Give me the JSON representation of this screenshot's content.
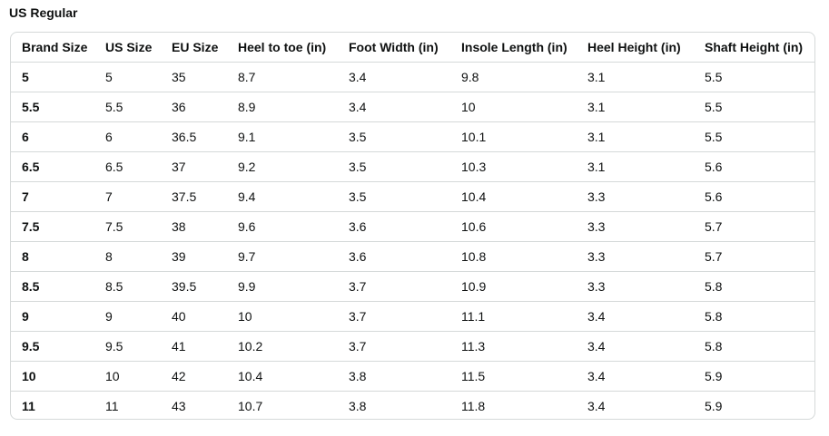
{
  "title": "US Regular",
  "columns": [
    "Brand Size",
    "US Size",
    "EU Size",
    "Heel to toe (in)",
    "Foot Width (in)",
    "Insole Length (in)",
    "Heel Height (in)",
    "Shaft Height (in)"
  ],
  "rows": [
    [
      "5",
      "5",
      "35",
      "8.7",
      "3.4",
      "9.8",
      "3.1",
      "5.5"
    ],
    [
      "5.5",
      "5.5",
      "36",
      "8.9",
      "3.4",
      "10",
      "3.1",
      "5.5"
    ],
    [
      "6",
      "6",
      "36.5",
      "9.1",
      "3.5",
      "10.1",
      "3.1",
      "5.5"
    ],
    [
      "6.5",
      "6.5",
      "37",
      "9.2",
      "3.5",
      "10.3",
      "3.1",
      "5.6"
    ],
    [
      "7",
      "7",
      "37.5",
      "9.4",
      "3.5",
      "10.4",
      "3.3",
      "5.6"
    ],
    [
      "7.5",
      "7.5",
      "38",
      "9.6",
      "3.6",
      "10.6",
      "3.3",
      "5.7"
    ],
    [
      "8",
      "8",
      "39",
      "9.7",
      "3.6",
      "10.8",
      "3.3",
      "5.7"
    ],
    [
      "8.5",
      "8.5",
      "39.5",
      "9.9",
      "3.7",
      "10.9",
      "3.3",
      "5.8"
    ],
    [
      "9",
      "9",
      "40",
      "10",
      "3.7",
      "11.1",
      "3.4",
      "5.8"
    ],
    [
      "9.5",
      "9.5",
      "41",
      "10.2",
      "3.7",
      "11.3",
      "3.4",
      "5.8"
    ],
    [
      "10",
      "10",
      "42",
      "10.4",
      "3.8",
      "11.5",
      "3.4",
      "5.9"
    ],
    [
      "11",
      "11",
      "43",
      "10.7",
      "3.8",
      "11.8",
      "3.4",
      "5.9"
    ]
  ]
}
